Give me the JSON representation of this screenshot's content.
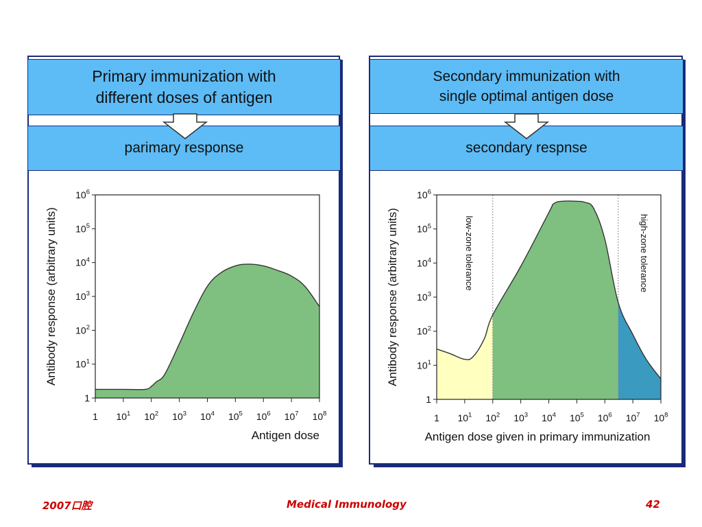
{
  "left_panel": {
    "header": "Primary immunization with\ndifferent doses of antigen",
    "subheader": "parimary response"
  },
  "right_panel": {
    "header": "Secondary immunization with\nsingle optimal antigen dose",
    "subheader": "secondary respnse"
  },
  "footer": {
    "left": "2007口腔",
    "center": "Medical Immunology",
    "page": "42"
  },
  "colors": {
    "header_bg": "#5dbcf6",
    "border": "#1a2a7a",
    "green_fill": "#7fc080",
    "yellow_fill": "#ffffc0",
    "blue_fill": "#3a9ac0",
    "footer_text": "#cc0000"
  },
  "chart_data": [
    {
      "type": "area",
      "title": "parimary response",
      "xlabel": "Antigen dose",
      "ylabel": "Antibody response (arbitrary units)",
      "x_scale": "log",
      "y_scale": "log",
      "xlim": [
        1,
        100000000
      ],
      "ylim": [
        1,
        1000000
      ],
      "x_ticks": [
        "1",
        "10^1",
        "10^2",
        "10^3",
        "10^4",
        "10^5",
        "10^6",
        "10^7",
        "10^8"
      ],
      "y_ticks": [
        "1",
        "10^1",
        "10^2",
        "10^3",
        "10^4",
        "10^5",
        "10^6"
      ],
      "x": [
        1,
        10,
        60,
        100,
        150,
        300,
        1000,
        3000,
        10000,
        30000,
        100000,
        300000,
        1000000,
        3000000,
        10000000,
        30000000,
        100000000
      ],
      "y": [
        1.8,
        1.8,
        1.8,
        2.2,
        3,
        5,
        40,
        300,
        2000,
        5000,
        8000,
        9000,
        8000,
        6000,
        4000,
        2000,
        500
      ],
      "grid": false
    },
    {
      "type": "area",
      "title": "secondary respnse",
      "xlabel": "Antigen dose given in primary immunization",
      "ylabel": "Antibody response (arbitrary units)",
      "x_scale": "log",
      "y_scale": "log",
      "xlim": [
        1,
        100000000
      ],
      "ylim": [
        1,
        1000000
      ],
      "x_ticks": [
        "1",
        "10^1",
        "10^2",
        "10^3",
        "10^4",
        "10^5",
        "10^6",
        "10^7",
        "10^8"
      ],
      "y_ticks": [
        "1",
        "10^1",
        "10^2",
        "10^3",
        "10^4",
        "10^5",
        "10^6"
      ],
      "x": [
        1,
        3,
        10,
        20,
        50,
        100,
        1000,
        10000,
        15000,
        30000,
        100000,
        200000,
        400000,
        1000000,
        3000000,
        10000000,
        30000000,
        100000000
      ],
      "y": [
        30,
        22,
        15,
        18,
        60,
        300,
        8000,
        300000,
        550000,
        650000,
        650000,
        600000,
        400000,
        50000,
        700,
        80,
        15,
        4
      ],
      "regions": [
        {
          "label": "low-zone tolerance",
          "from": 1,
          "to": 100,
          "color": "#ffffc0"
        },
        {
          "label": "",
          "from": 100,
          "to": 3000000,
          "color": "#7fc080"
        },
        {
          "label": "high-zone tolerance",
          "from": 3000000,
          "to": 100000000,
          "color": "#3a9ac0"
        }
      ],
      "grid": false
    }
  ]
}
